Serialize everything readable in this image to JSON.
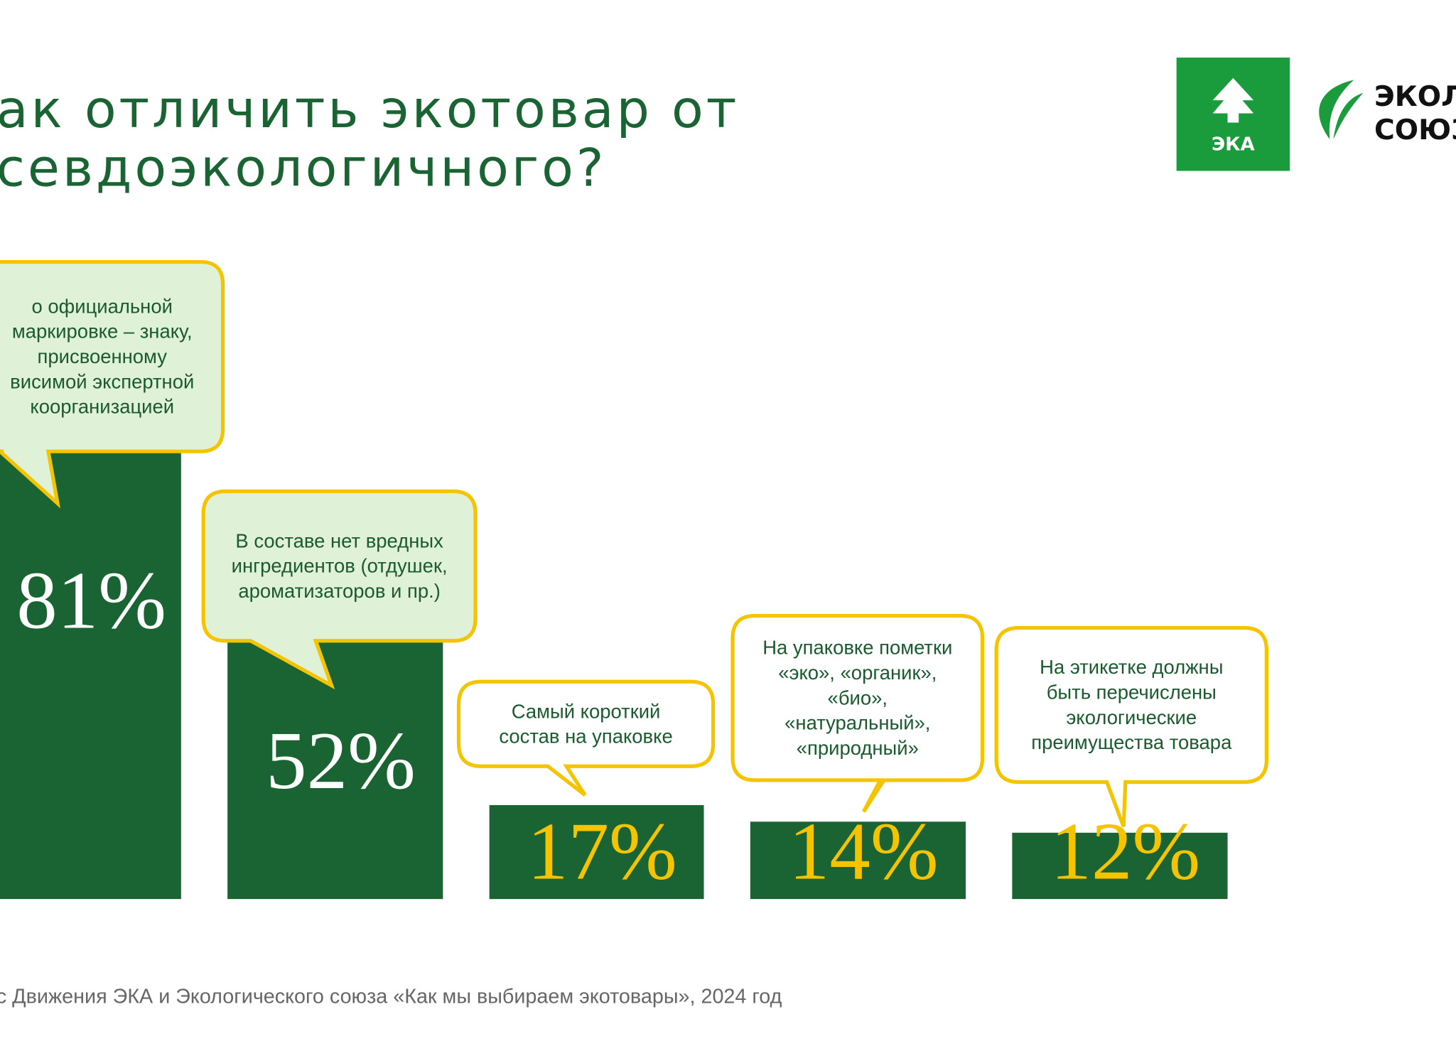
{
  "title_lines": [
    "ак отличить экотовар от",
    "севдоэкологичного?"
  ],
  "logos": {
    "eka": "ЭКА",
    "union_lines": [
      "ЭКОЛО",
      "СОЮЗ"
    ]
  },
  "chart_data": {
    "type": "bar",
    "values": [
      81,
      52,
      17,
      14,
      12
    ],
    "value_labels": [
      "81%",
      "52%",
      "17%",
      "14%",
      "12%"
    ],
    "color": "#1a6332",
    "value_label_colors": [
      "#ffffff",
      "#ffffff",
      "#f5c400",
      "#f5c400",
      "#f5c400"
    ],
    "callouts": [
      [
        "о официальной",
        "маркировке – знаку,",
        "присвоенному",
        "висимой экспертной",
        "коорганизацией"
      ],
      [
        "В составе нет вредных",
        "ингредиентов (отдушек,",
        "ароматизаторов и пр.)"
      ],
      [
        "Самый короткий",
        "состав на упаковке"
      ],
      [
        "На упаковке пометки",
        "«эко», «органик»,",
        "«био»,",
        "«натуральный»,",
        "«природный»"
      ],
      [
        "На этикетке должны",
        "быть перечислены",
        "экологические",
        "преимущества товара"
      ]
    ],
    "callout_fills": [
      "#dff2d8",
      "#dff2d8",
      "#ffffff",
      "#ffffff",
      "#ffffff"
    ],
    "callout_stroke": "#f5c400"
  },
  "footnote": "с Движения ЭКА и Экологического союза «Как мы выбираем экотовары», 2024 год"
}
